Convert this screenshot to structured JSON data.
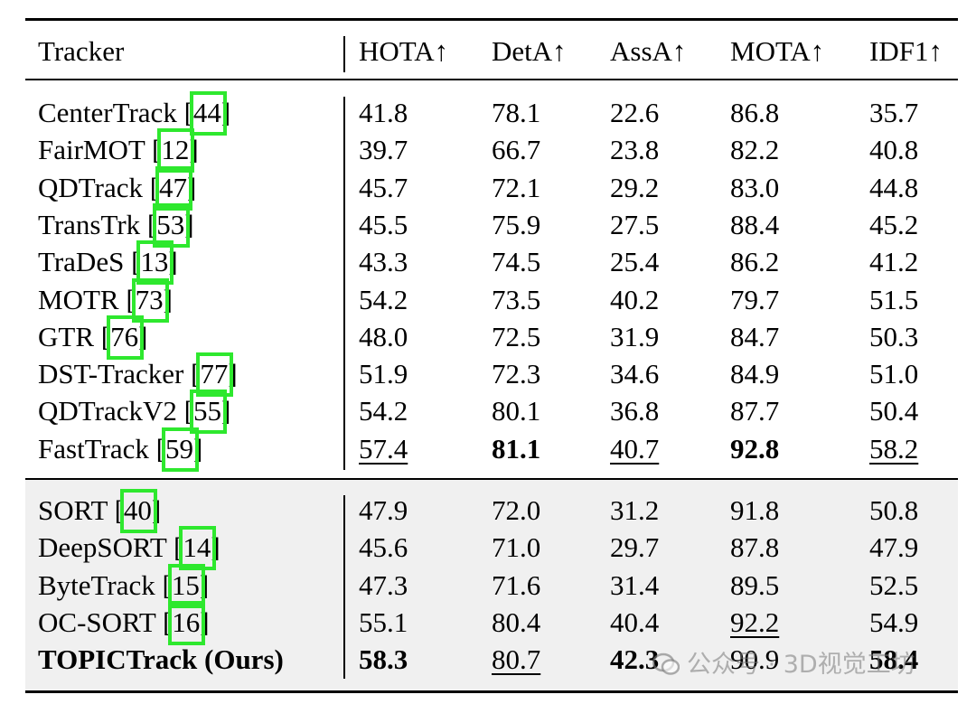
{
  "columns": [
    "Tracker",
    "HOTA↑",
    "DetA↑",
    "AssA↑",
    "MOTA↑",
    "IDF1↑"
  ],
  "group1": [
    {
      "name": "CenterTrack [",
      "ref": "44",
      "close": "]",
      "values": [
        "41.8",
        "78.1",
        "22.6",
        "86.8",
        "35.7"
      ]
    },
    {
      "name": "FairMOT [",
      "ref": "12",
      "close": "]",
      "values": [
        "39.7",
        "66.7",
        "23.8",
        "82.2",
        "40.8"
      ]
    },
    {
      "name": "QDTrack [",
      "ref": "47",
      "close": "]",
      "values": [
        "45.7",
        "72.1",
        "29.2",
        "83.0",
        "44.8"
      ]
    },
    {
      "name": "TransTrk [",
      "ref": "53",
      "close": "]",
      "values": [
        "45.5",
        "75.9",
        "27.5",
        "88.4",
        "45.2"
      ]
    },
    {
      "name": "TraDeS [",
      "ref": "13",
      "close": "]",
      "values": [
        "43.3",
        "74.5",
        "25.4",
        "86.2",
        "41.2"
      ]
    },
    {
      "name": "MOTR [",
      "ref": "73",
      "close": "]",
      "values": [
        "54.2",
        "73.5",
        "40.2",
        "79.7",
        "51.5"
      ]
    },
    {
      "name": "GTR [",
      "ref": "76",
      "close": "]",
      "values": [
        "48.0",
        "72.5",
        "31.9",
        "84.7",
        "50.3"
      ]
    },
    {
      "name": "DST-Tracker [",
      "ref": "77",
      "close": "]",
      "values": [
        "51.9",
        "72.3",
        "34.6",
        "84.9",
        "51.0"
      ]
    },
    {
      "name": "QDTrackV2 [",
      "ref": "55",
      "close": "]",
      "values": [
        "54.2",
        "80.1",
        "36.8",
        "87.7",
        "50.4"
      ]
    },
    {
      "name": "FastTrack [",
      "ref": "59",
      "close": "]",
      "values": [
        "57.4",
        "81.1",
        "40.7",
        "92.8",
        "58.2"
      ]
    }
  ],
  "group2": [
    {
      "name": "SORT [",
      "ref": "40",
      "close": "]",
      "values": [
        "47.9",
        "72.0",
        "31.2",
        "91.8",
        "50.8"
      ]
    },
    {
      "name": "DeepSORT [",
      "ref": "14",
      "close": "]",
      "values": [
        "45.6",
        "71.0",
        "29.7",
        "87.8",
        "47.9"
      ]
    },
    {
      "name": "ByteTrack [",
      "ref": "15",
      "close": "]",
      "values": [
        "47.3",
        "71.6",
        "31.4",
        "89.5",
        "52.5"
      ]
    },
    {
      "name": "OC-SORT [",
      "ref": "16",
      "close": "]",
      "values": [
        "55.1",
        "80.4",
        "40.4",
        "92.2",
        "54.9"
      ]
    }
  ],
  "ours": {
    "name": "TOPICTrack (Ours)",
    "values": [
      "58.3",
      "80.7",
      "42.3",
      "90.9",
      "58.4"
    ]
  },
  "watermark": "公众号 · 3D视觉工坊",
  "highlight_color": "#2ee82e"
}
